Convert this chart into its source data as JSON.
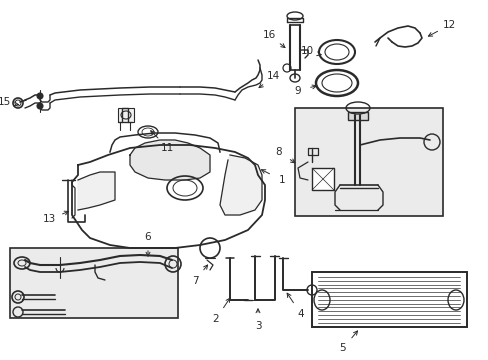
{
  "bg_color": "#ffffff",
  "lc": "#2a2a2a",
  "box_fill": "#e8e8e8",
  "figsize": [
    4.89,
    3.6
  ],
  "dpi": 100,
  "xlim": [
    0,
    489
  ],
  "ylim": [
    0,
    360
  ]
}
